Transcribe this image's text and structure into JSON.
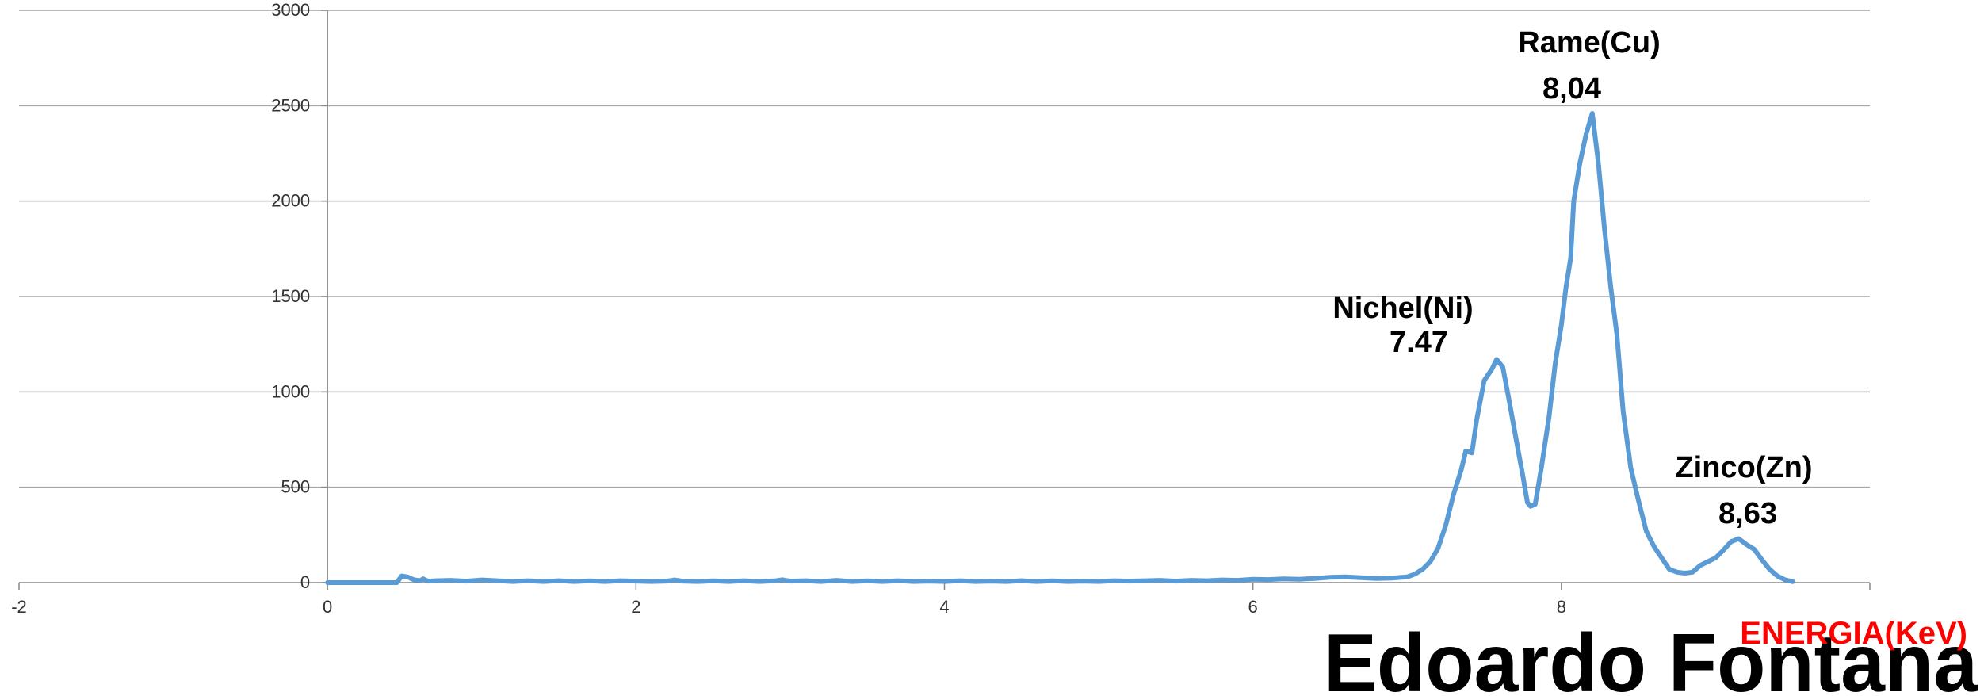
{
  "chart_data": {
    "type": "line",
    "title": "",
    "xlabel": "ENERGIA(KeV)",
    "ylabel": "",
    "xlim": [
      -2,
      10
    ],
    "ylim": [
      0,
      3000
    ],
    "x_ticks": [
      "-2",
      "0",
      "2",
      "4",
      "6",
      "8"
    ],
    "y_ticks": [
      "0",
      "500",
      "1000",
      "1500",
      "2000",
      "2500",
      "3000"
    ],
    "grid": "horizontal",
    "series": [
      {
        "color": "#5b9bd5",
        "points": [
          [
            0.0,
            0
          ],
          [
            0.1,
            0
          ],
          [
            0.2,
            0
          ],
          [
            0.3,
            0
          ],
          [
            0.4,
            0
          ],
          [
            0.45,
            0
          ],
          [
            0.48,
            35
          ],
          [
            0.52,
            30
          ],
          [
            0.56,
            15
          ],
          [
            0.6,
            10
          ],
          [
            0.62,
            20
          ],
          [
            0.65,
            8
          ],
          [
            0.7,
            10
          ],
          [
            0.8,
            12
          ],
          [
            0.9,
            8
          ],
          [
            1.0,
            14
          ],
          [
            1.1,
            10
          ],
          [
            1.2,
            6
          ],
          [
            1.3,
            10
          ],
          [
            1.4,
            6
          ],
          [
            1.5,
            10
          ],
          [
            1.6,
            6
          ],
          [
            1.7,
            9
          ],
          [
            1.8,
            6
          ],
          [
            1.9,
            10
          ],
          [
            2.0,
            8
          ],
          [
            2.1,
            6
          ],
          [
            2.2,
            8
          ],
          [
            2.25,
            14
          ],
          [
            2.3,
            8
          ],
          [
            2.4,
            6
          ],
          [
            2.5,
            9
          ],
          [
            2.6,
            6
          ],
          [
            2.7,
            10
          ],
          [
            2.8,
            6
          ],
          [
            2.9,
            9
          ],
          [
            2.95,
            15
          ],
          [
            3.0,
            8
          ],
          [
            3.1,
            10
          ],
          [
            3.2,
            6
          ],
          [
            3.3,
            12
          ],
          [
            3.4,
            6
          ],
          [
            3.5,
            9
          ],
          [
            3.6,
            6
          ],
          [
            3.7,
            10
          ],
          [
            3.8,
            6
          ],
          [
            3.9,
            8
          ],
          [
            4.0,
            6
          ],
          [
            4.1,
            10
          ],
          [
            4.2,
            6
          ],
          [
            4.3,
            8
          ],
          [
            4.4,
            6
          ],
          [
            4.5,
            10
          ],
          [
            4.6,
            6
          ],
          [
            4.7,
            9
          ],
          [
            4.8,
            6
          ],
          [
            4.9,
            8
          ],
          [
            5.0,
            6
          ],
          [
            5.1,
            10
          ],
          [
            5.2,
            8
          ],
          [
            5.3,
            10
          ],
          [
            5.4,
            12
          ],
          [
            5.5,
            8
          ],
          [
            5.6,
            12
          ],
          [
            5.7,
            10
          ],
          [
            5.8,
            14
          ],
          [
            5.9,
            12
          ],
          [
            6.0,
            18
          ],
          [
            6.1,
            16
          ],
          [
            6.2,
            20
          ],
          [
            6.3,
            18
          ],
          [
            6.4,
            22
          ],
          [
            6.5,
            28
          ],
          [
            6.6,
            30
          ],
          [
            6.7,
            26
          ],
          [
            6.8,
            22
          ],
          [
            6.9,
            24
          ],
          [
            7.0,
            30
          ],
          [
            7.05,
            45
          ],
          [
            7.1,
            70
          ],
          [
            7.15,
            110
          ],
          [
            7.2,
            180
          ],
          [
            7.25,
            300
          ],
          [
            7.3,
            460
          ],
          [
            7.35,
            590
          ],
          [
            7.38,
            690
          ],
          [
            7.42,
            680
          ],
          [
            7.45,
            850
          ],
          [
            7.5,
            1060
          ],
          [
            7.55,
            1120
          ],
          [
            7.58,
            1170
          ],
          [
            7.62,
            1130
          ],
          [
            7.66,
            960
          ],
          [
            7.7,
            780
          ],
          [
            7.75,
            560
          ],
          [
            7.78,
            420
          ],
          [
            7.8,
            400
          ],
          [
            7.83,
            410
          ],
          [
            7.87,
            600
          ],
          [
            7.92,
            870
          ],
          [
            7.96,
            1150
          ],
          [
            8.0,
            1350
          ],
          [
            8.03,
            1550
          ],
          [
            8.06,
            1700
          ],
          [
            8.08,
            2000
          ],
          [
            8.12,
            2200
          ],
          [
            8.16,
            2350
          ],
          [
            8.2,
            2460
          ],
          [
            8.24,
            2200
          ],
          [
            8.28,
            1850
          ],
          [
            8.32,
            1550
          ],
          [
            8.36,
            1300
          ],
          [
            8.4,
            900
          ],
          [
            8.45,
            600
          ],
          [
            8.5,
            430
          ],
          [
            8.55,
            270
          ],
          [
            8.6,
            190
          ],
          [
            8.65,
            130
          ],
          [
            8.7,
            70
          ],
          [
            8.75,
            55
          ],
          [
            8.8,
            50
          ],
          [
            8.85,
            55
          ],
          [
            8.9,
            90
          ],
          [
            8.95,
            110
          ],
          [
            9.0,
            130
          ],
          [
            9.05,
            170
          ],
          [
            9.1,
            215
          ],
          [
            9.15,
            230
          ],
          [
            9.2,
            200
          ],
          [
            9.25,
            175
          ],
          [
            9.3,
            120
          ],
          [
            9.35,
            70
          ],
          [
            9.4,
            35
          ],
          [
            9.45,
            15
          ],
          [
            9.5,
            5
          ]
        ]
      }
    ],
    "annotations": [
      {
        "id": "ni",
        "line1": "Nichel(Ni)",
        "line2": "7.47"
      },
      {
        "id": "cu",
        "line1": "Rame(Cu)",
        "line2": "8,04"
      },
      {
        "id": "zn",
        "line1": "Zinco(Zn)",
        "line2": "8,63"
      }
    ]
  },
  "watermark": "Edoardo Fontana"
}
